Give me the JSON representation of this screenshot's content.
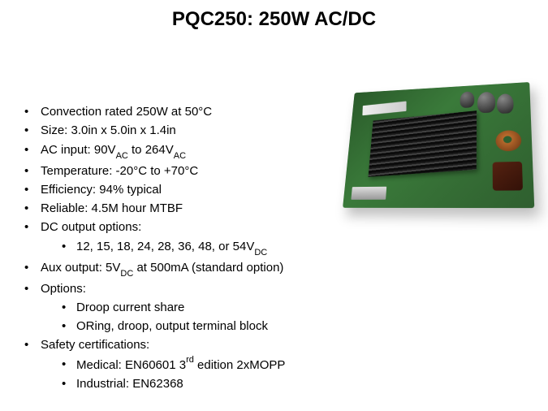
{
  "title": "PQC250: 250W AC/DC",
  "specs": {
    "items": [
      "Convection rated 250W at 50°C",
      "Size: 3.0in x 5.0in x 1.4in",
      {
        "text": "AC input: 90V{sub:AC} to 264V{sub:AC}"
      },
      "Temperature: -20°C to +70°C",
      "Efficiency: 94% typical",
      "Reliable: 4.5M hour MTBF",
      {
        "text": "DC output options:",
        "children": [
          {
            "text": "12, 15, 18, 24, 28, 36, 48, or 54V{sub:DC}"
          }
        ]
      },
      {
        "text": "Aux output: 5V{sub:DC} at 500mA (standard option)"
      },
      {
        "text": "Options:",
        "children": [
          "Droop current share",
          "ORing, droop, output terminal block"
        ]
      },
      {
        "text": "Safety certifications:",
        "children": [
          {
            "text": "Medical: EN60601 3{sup:rd} edition 2xMOPP"
          },
          "Industrial: EN62368"
        ]
      }
    ]
  },
  "image": {
    "semantic": "power-supply-pcb-photo",
    "pcb_color": "#356b35",
    "heatsink_color": "#1a1a1a",
    "capacitor_color": "#333333",
    "toroid_color": "#aa5522",
    "transformer_color": "#442211"
  },
  "colors": {
    "background": "#ffffff",
    "text": "#000000"
  },
  "typography": {
    "title_fontsize": 24,
    "body_fontsize": 15,
    "font_family": "Arial"
  }
}
